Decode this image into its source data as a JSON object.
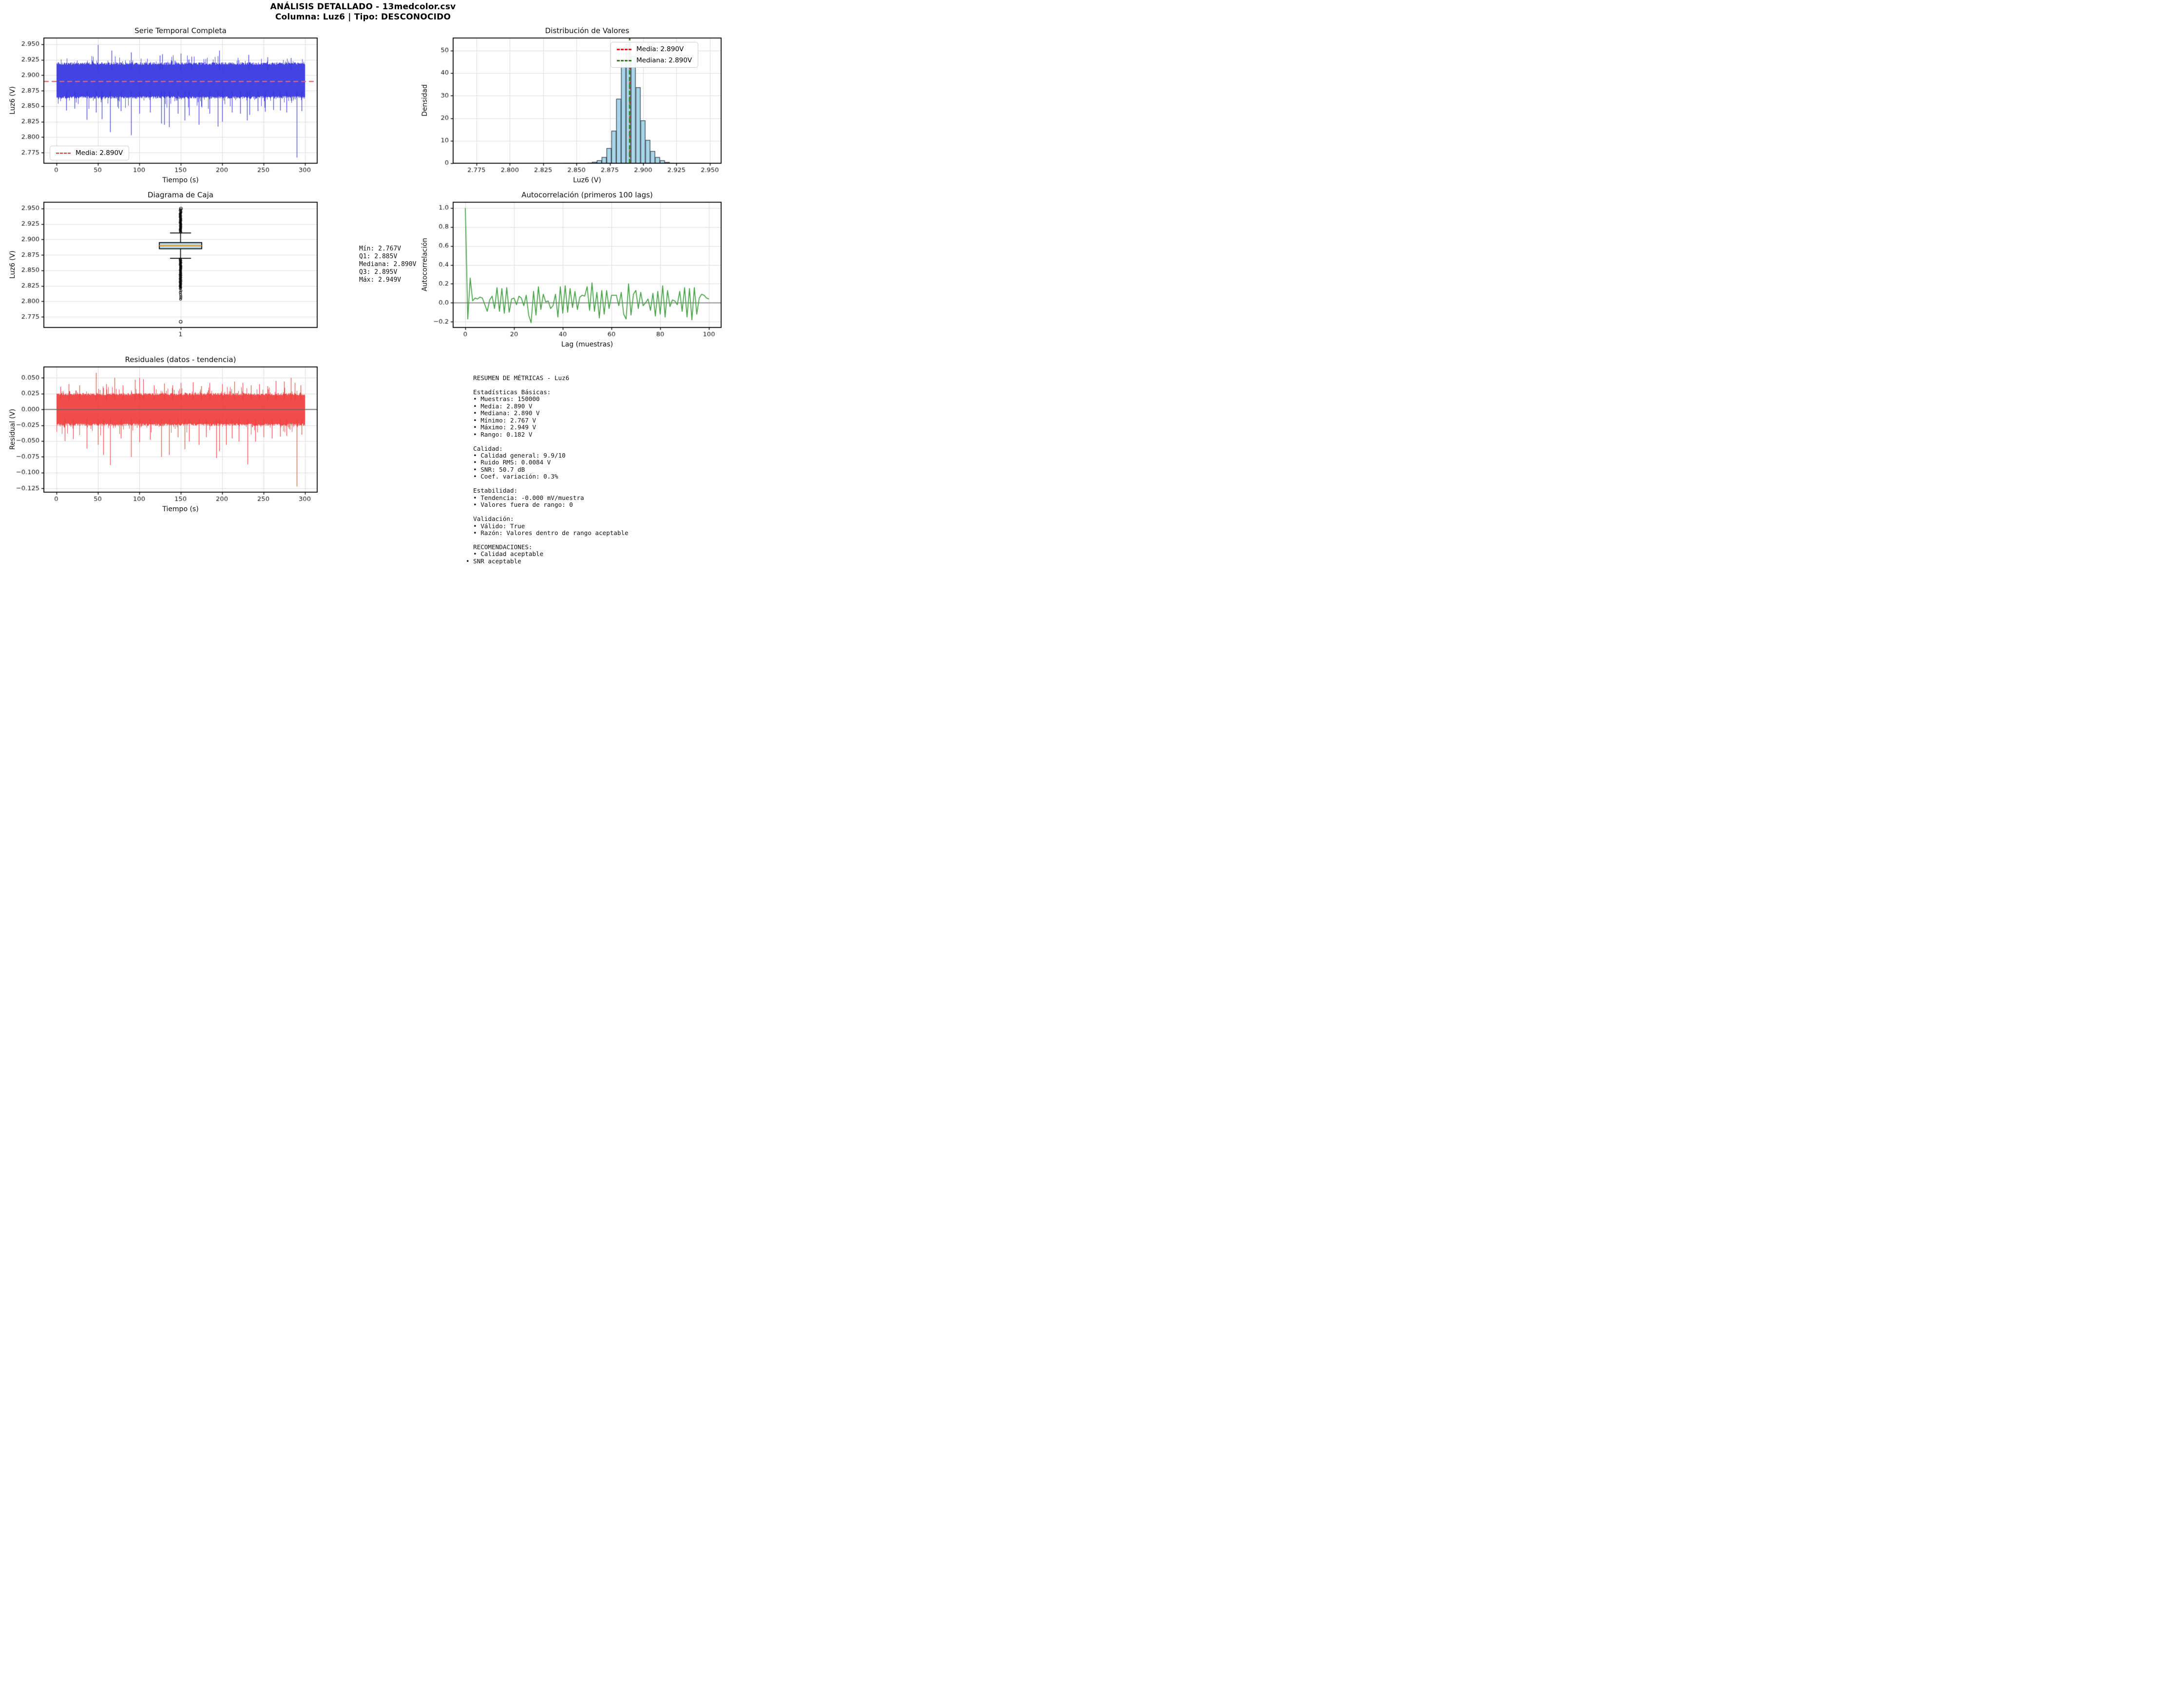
{
  "figure": {
    "title_line1": "ANÁLISIS DETALLADO - 13medcolor.csv",
    "title_line2": "Columna: Luz6 | Tipo: DESCONOCIDO"
  },
  "colors": {
    "series_blue": "#3333e0",
    "mean_dash_red": "#ee6262",
    "hist_mean_red": "#d62020",
    "hist_median_green": "#1f8c1f",
    "hist_fill": "#a9d5e9",
    "hist_edge": "#2f373d",
    "box_fill": "#b9dcec",
    "box_median_orange": "#ff8c00",
    "acf_green": "#44a044",
    "resid_red": "#f03c3c",
    "zero_gray": "#8c8c8c",
    "grid": "#dcdcdc",
    "spine": "#000000"
  },
  "legends": {
    "ts": {
      "label": "Media: 2.890V"
    },
    "hist": {
      "media": "Media: 2.890V",
      "mediana": "Mediana: 2.890V"
    }
  },
  "stats_box": {
    "text": "Mín: 2.767V\nQ1: 2.885V\nMediana: 2.890V\nQ3: 2.895V\nMáx: 2.949V"
  },
  "metrics_box": {
    "text": "  RESUMEN DE MÉTRICAS - Luz6\n\n  Estadísticas Básicas:\n  • Muestras: 150000\n  • Media: 2.890 V\n  • Mediana: 2.890 V\n  • Mínimo: 2.767 V\n  • Máximo: 2.949 V\n  • Rango: 0.182 V\n\n  Calidad:\n  • Calidad general: 9.9/10\n  • Ruido RMS: 0.0084 V\n  • SNR: 50.7 dB\n  • Coef. variación: 0.3%\n\n  Estabilidad:\n  • Tendencia: -0.000 mV/muestra\n  • Valores fuera de rango: 0\n\n  Validación:\n  • Válido: True\n  • Razón: Valores dentro de rango aceptable\n\n  RECOMENDACIONES:\n  • Calidad aceptable\n• SNR aceptable"
  },
  "chart_data": {
    "time_series": {
      "type": "line",
      "title": "Serie Temporal Completa",
      "xlabel": "Tiempo (s)",
      "ylabel": "Luz6 (V)",
      "xlim": [
        -15,
        315
      ],
      "ylim": [
        2.7578,
        2.9602
      ],
      "xtick_values": [
        0,
        50,
        100,
        150,
        200,
        250,
        300
      ],
      "xtick_labels": [
        "0",
        "50",
        "100",
        "150",
        "200",
        "250",
        "300"
      ],
      "ytick_values": [
        2.775,
        2.8,
        2.825,
        2.85,
        2.875,
        2.9,
        2.925,
        2.95
      ],
      "ytick_labels": [
        "2.775",
        "2.800",
        "2.825",
        "2.850",
        "2.875",
        "2.900",
        "2.925",
        "2.950"
      ],
      "mean": 2.89,
      "band": {
        "low": 2.862,
        "high": 2.921
      },
      "seed": 42,
      "spikes_up": [
        [
          50,
          2.949
        ],
        [
          67,
          2.94
        ],
        [
          90,
          2.937
        ],
        [
          125,
          2.932
        ],
        [
          128,
          2.934
        ],
        [
          150,
          2.935
        ],
        [
          163,
          2.93
        ],
        [
          197,
          2.94
        ],
        [
          232,
          2.933
        ],
        [
          255,
          2.929
        ],
        [
          283,
          2.928
        ]
      ],
      "spikes_down": [
        [
          12,
          2.843
        ],
        [
          22,
          2.846
        ],
        [
          37,
          2.828
        ],
        [
          48,
          2.84
        ],
        [
          55,
          2.829
        ],
        [
          65,
          2.808
        ],
        [
          78,
          2.842
        ],
        [
          90,
          2.803
        ],
        [
          100,
          2.838
        ],
        [
          113,
          2.84
        ],
        [
          127,
          2.822
        ],
        [
          130,
          2.82
        ],
        [
          136,
          2.816
        ],
        [
          147,
          2.838
        ],
        [
          155,
          2.827
        ],
        [
          160,
          2.835
        ],
        [
          172,
          2.82
        ],
        [
          185,
          2.838
        ],
        [
          195,
          2.817
        ],
        [
          200,
          2.825
        ],
        [
          212,
          2.84
        ],
        [
          222,
          2.838
        ],
        [
          230,
          2.827
        ],
        [
          233,
          2.836
        ],
        [
          243,
          2.842
        ],
        [
          252,
          2.841
        ],
        [
          262,
          2.844
        ],
        [
          270,
          2.843
        ],
        [
          278,
          2.84
        ],
        [
          290,
          2.767
        ],
        [
          296,
          2.842
        ]
      ]
    },
    "histogram": {
      "type": "bar",
      "title": "Distribución de Valores",
      "xlabel": "Luz6 (V)",
      "ylabel": "Densidad",
      "xlim": [
        2.7575,
        2.9585
      ],
      "ylim": [
        0,
        55.6
      ],
      "xtick_values": [
        2.775,
        2.8,
        2.825,
        2.85,
        2.875,
        2.9,
        2.925,
        2.95
      ],
      "xtick_labels": [
        "2.775",
        "2.800",
        "2.825",
        "2.850",
        "2.875",
        "2.900",
        "2.925",
        "2.950"
      ],
      "ytick_values": [
        0,
        10,
        20,
        30,
        40,
        50
      ],
      "ytick_labels": [
        "0",
        "10",
        "20",
        "30",
        "40",
        "50"
      ],
      "bin_start": 2.767,
      "bin_width": 0.00364,
      "heights": [
        0,
        0,
        0,
        0,
        0,
        0,
        0,
        0,
        0,
        0,
        0,
        0,
        0,
        0,
        0,
        0,
        0,
        0,
        0,
        0,
        0.02,
        0.04,
        0.06,
        0.1,
        0.15,
        0.25,
        0.6,
        1.3,
        2.7,
        6.7,
        14.4,
        28.6,
        45.4,
        53,
        47.5,
        33.7,
        19,
        10.3,
        5.4,
        2.7,
        1.3,
        0.5,
        0.2,
        0.1,
        0.05,
        0.03,
        0.02,
        0.01,
        0.01,
        0.01
      ],
      "mean": 2.89,
      "median": 2.8898
    },
    "boxplot": {
      "type": "box",
      "title": "Diagrama de Caja",
      "ylabel": "Luz6 (V)",
      "xlim": [
        0,
        2
      ],
      "ylim": [
        2.7578,
        2.9602
      ],
      "xtick_values": [
        1
      ],
      "xtick_labels": [
        "1"
      ],
      "ytick_values": [
        2.775,
        2.8,
        2.825,
        2.85,
        2.875,
        2.9,
        2.925,
        2.95
      ],
      "ytick_labels": [
        "2.775",
        "2.800",
        "2.825",
        "2.850",
        "2.875",
        "2.900",
        "2.925",
        "2.950"
      ],
      "q1": 2.885,
      "median": 2.89,
      "q3": 2.895,
      "whisker_low": 2.8695,
      "whisker_high": 2.9105,
      "dense_outliers_high": [
        2.9115,
        2.944
      ],
      "dense_outliers_low": [
        2.82,
        2.8685
      ],
      "sparse_outliers_high": [
        2.9455,
        2.947,
        2.9485
      ],
      "sparse_outliers_low": [
        2.817,
        2.8145,
        2.8115,
        2.8085,
        2.806,
        2.8035
      ],
      "extreme_high": 2.95,
      "extreme_low": 2.767,
      "box_halfwidth": 0.155,
      "cap_halfwidth": 0.077
    },
    "autocorrelation": {
      "type": "line",
      "title": "Autocorrelación (primeros 100 lags)",
      "xlabel": "Lag (muestras)",
      "ylabel": "Autocorrelación",
      "xlim": [
        -5,
        105
      ],
      "ylim": [
        -0.26,
        1.06
      ],
      "xtick_values": [
        0,
        20,
        40,
        60,
        80,
        100
      ],
      "xtick_labels": [
        "0",
        "20",
        "40",
        "60",
        "80",
        "100"
      ],
      "ytick_values": [
        -0.2,
        0,
        0.2,
        0.4,
        0.6,
        0.8,
        1.0
      ],
      "ytick_labels": [
        "−0.2",
        "0.0",
        "0.2",
        "0.4",
        "0.6",
        "0.8",
        "1.0"
      ],
      "zero_line": 0,
      "values": [
        1.0,
        -0.17,
        0.26,
        0.02,
        0.05,
        0.04,
        0.06,
        0.05,
        -0.02,
        -0.09,
        0.03,
        0.07,
        -0.06,
        0.16,
        -0.09,
        0.15,
        -0.11,
        0.16,
        -0.1,
        0.04,
        0.05,
        -0.02,
        0.07,
        0.05,
        -0.03,
        0.08,
        -0.13,
        -0.21,
        0.12,
        -0.13,
        0.17,
        -0.07,
        0.09,
        0.01,
        0.02,
        -0.06,
        -0.03,
        0.09,
        -0.15,
        0.17,
        -0.11,
        0.18,
        -0.1,
        0.15,
        -0.05,
        0.12,
        -0.07,
        0.06,
        0.08,
        0.07,
        0.17,
        -0.08,
        0.21,
        -0.09,
        0.11,
        -0.16,
        0.13,
        -0.12,
        0.13,
        -0.06,
        0.08,
        0.08,
        0.08,
        -0.03,
        0.11,
        -0.12,
        -0.17,
        0.2,
        -0.13,
        0.09,
        0.13,
        -0.06,
        0.11,
        -0.03,
        0.0,
        0.04,
        -0.08,
        0.1,
        -0.14,
        0.12,
        -0.12,
        0.18,
        -0.15,
        0.13,
        -0.04,
        0.03,
        0.02,
        -0.02,
        0.12,
        -0.09,
        0.16,
        -0.15,
        0.15,
        -0.18,
        0.16,
        -0.12,
        0.05,
        0.09,
        0.08,
        0.05,
        0.04
      ]
    },
    "residuals": {
      "type": "line",
      "title": "Residuales (datos - tendencia)",
      "xlabel": "Tiempo (s)",
      "ylabel": "Residual (V)",
      "xlim": [
        -15,
        315
      ],
      "ylim": [
        -0.131,
        0.0672
      ],
      "xtick_values": [
        0,
        50,
        100,
        150,
        200,
        250,
        300
      ],
      "xtick_labels": [
        "0",
        "50",
        "100",
        "150",
        "200",
        "250",
        "300"
      ],
      "ytick_values": [
        0.05,
        0.025,
        0,
        -0.025,
        -0.05,
        -0.075,
        -0.1,
        -0.125
      ],
      "ytick_labels": [
        "0.050",
        "0.025",
        "0.000",
        "−0.025",
        "−0.050",
        "−0.075",
        "−0.100",
        "−0.125"
      ],
      "zero_line": 0,
      "band": {
        "low": -0.026,
        "high": 0.026
      },
      "seed": 99,
      "spikes_up": [
        [
          5,
          0.036
        ],
        [
          15,
          0.04
        ],
        [
          28,
          0.038
        ],
        [
          48,
          0.058
        ],
        [
          60,
          0.04
        ],
        [
          70,
          0.05
        ],
        [
          80,
          0.038
        ],
        [
          95,
          0.047
        ],
        [
          100,
          0.05
        ],
        [
          105,
          0.048
        ],
        [
          118,
          0.038
        ],
        [
          130,
          0.041
        ],
        [
          140,
          0.038
        ],
        [
          150,
          0.042
        ],
        [
          165,
          0.043
        ],
        [
          175,
          0.037
        ],
        [
          185,
          0.042
        ],
        [
          200,
          0.04
        ],
        [
          215,
          0.044
        ],
        [
          225,
          0.042
        ],
        [
          235,
          0.038
        ],
        [
          245,
          0.04
        ],
        [
          255,
          0.037
        ],
        [
          265,
          0.045
        ],
        [
          275,
          0.044
        ],
        [
          283,
          0.05
        ],
        [
          288,
          0.042
        ],
        [
          295,
          0.038
        ]
      ],
      "spikes_down": [
        [
          10,
          -0.05
        ],
        [
          20,
          -0.047
        ],
        [
          37,
          -0.062
        ],
        [
          50,
          -0.056
        ],
        [
          57,
          -0.072
        ],
        [
          65,
          -0.088
        ],
        [
          78,
          -0.046
        ],
        [
          90,
          -0.075
        ],
        [
          100,
          -0.052
        ],
        [
          113,
          -0.048
        ],
        [
          127,
          -0.075
        ],
        [
          136,
          -0.072
        ],
        [
          147,
          -0.044
        ],
        [
          155,
          -0.063
        ],
        [
          160,
          -0.051
        ],
        [
          172,
          -0.056
        ],
        [
          181,
          -0.044
        ],
        [
          193,
          -0.077
        ],
        [
          197,
          -0.066
        ],
        [
          205,
          -0.056
        ],
        [
          212,
          -0.046
        ],
        [
          220,
          -0.051
        ],
        [
          231,
          -0.087
        ],
        [
          240,
          -0.051
        ],
        [
          250,
          -0.044
        ],
        [
          260,
          -0.046
        ],
        [
          270,
          -0.043
        ],
        [
          278,
          -0.042
        ],
        [
          290,
          -0.122
        ],
        [
          296,
          -0.04
        ]
      ]
    }
  }
}
